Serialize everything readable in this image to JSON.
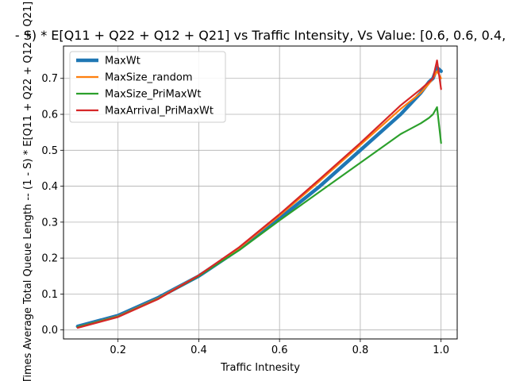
{
  "chart_data": {
    "type": "line",
    "title": "- S) * E[Q11 + Q22 + Q12 + Q21] vs Traffic Intensity, Vs Value: [0.6, 0.6, 0.4,",
    "xlabel": "Traffic Intnesity",
    "ylabel": "Times Average Total Queue Length -- (1 - S) * E[Q11 + Q22 + Q12 + Q21]",
    "xlim": [
      0.065,
      1.04
    ],
    "ylim": [
      -0.025,
      0.79
    ],
    "xticks": [
      0.2,
      0.4,
      0.6,
      0.8,
      1.0
    ],
    "xtick_labels": [
      "0.2",
      "0.4",
      "0.6",
      "0.8",
      "1.0"
    ],
    "yticks": [
      0.0,
      0.1,
      0.2,
      0.3,
      0.4,
      0.5,
      0.6,
      0.7
    ],
    "ytick_labels": [
      "0.0",
      "0.1",
      "0.2",
      "0.3",
      "0.4",
      "0.5",
      "0.6",
      "0.7"
    ],
    "grid": true,
    "legend_position": "top-left",
    "series": [
      {
        "name": "MaxWt",
        "color": "#1f77b4",
        "x": [
          0.1,
          0.2,
          0.3,
          0.4,
          0.5,
          0.6,
          0.7,
          0.8,
          0.9,
          0.95,
          0.97,
          0.98,
          0.99,
          1.0
        ],
        "y": [
          0.01,
          0.04,
          0.09,
          0.15,
          0.225,
          0.31,
          0.4,
          0.5,
          0.6,
          0.66,
          0.69,
          0.7,
          0.73,
          0.72
        ]
      },
      {
        "name": "MaxSize_random",
        "color": "#ff7f0e",
        "x": [
          0.1,
          0.2,
          0.3,
          0.4,
          0.5,
          0.6,
          0.7,
          0.8,
          0.9,
          0.95,
          0.97,
          0.98,
          0.99,
          1.0
        ],
        "y": [
          0.008,
          0.038,
          0.088,
          0.152,
          0.228,
          0.318,
          0.415,
          0.515,
          0.615,
          0.66,
          0.685,
          0.7,
          0.72,
          0.7
        ]
      },
      {
        "name": "MaxSize_PriMaxWt",
        "color": "#2ca02c",
        "x": [
          0.1,
          0.2,
          0.3,
          0.4,
          0.5,
          0.6,
          0.7,
          0.8,
          0.9,
          0.95,
          0.97,
          0.98,
          0.99,
          1.0
        ],
        "y": [
          0.008,
          0.037,
          0.087,
          0.15,
          0.222,
          0.305,
          0.385,
          0.465,
          0.545,
          0.575,
          0.59,
          0.6,
          0.62,
          0.52
        ]
      },
      {
        "name": "MaxArrival_PriMaxWt",
        "color": "#d62728",
        "x": [
          0.1,
          0.2,
          0.3,
          0.4,
          0.5,
          0.6,
          0.7,
          0.8,
          0.9,
          0.95,
          0.97,
          0.98,
          0.99,
          1.0
        ],
        "y": [
          0.006,
          0.036,
          0.086,
          0.152,
          0.23,
          0.322,
          0.42,
          0.52,
          0.625,
          0.67,
          0.69,
          0.7,
          0.75,
          0.67
        ]
      }
    ]
  }
}
